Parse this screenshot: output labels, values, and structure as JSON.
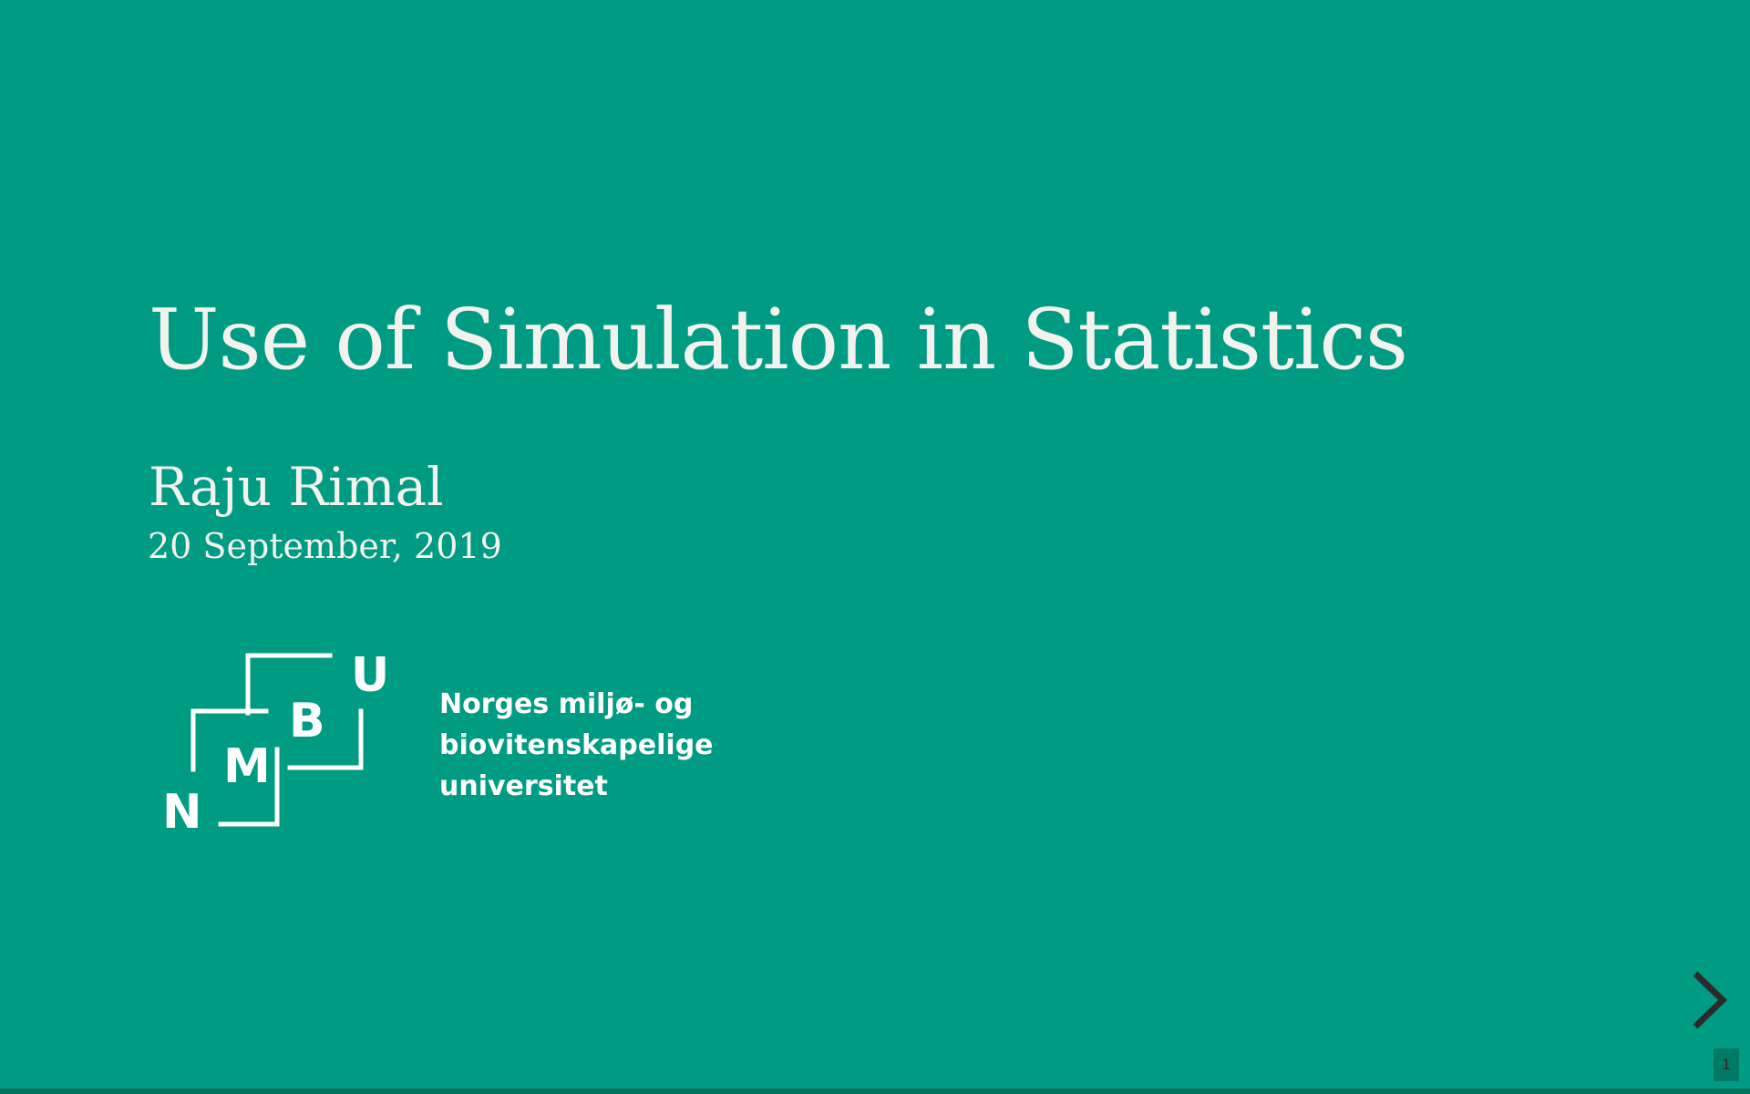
{
  "slide": {
    "title": "Use of Simulation in Statistics",
    "author": "Raju Rimal",
    "date": "20 September, 2019"
  },
  "logo": {
    "letters": [
      "N",
      "M",
      "B",
      "U"
    ],
    "lines": [
      "Norges miljø- og",
      "biovitenskapelige",
      "universitet"
    ],
    "icon": "nmbu-logo-icon"
  },
  "navigation": {
    "next_icon": "chevron-right-icon",
    "slide_number": "1"
  },
  "colors": {
    "background": "#009b83",
    "text": "#f2f2ee",
    "bottom_bar": "#00705f",
    "arrow": "#2b2b2b"
  }
}
